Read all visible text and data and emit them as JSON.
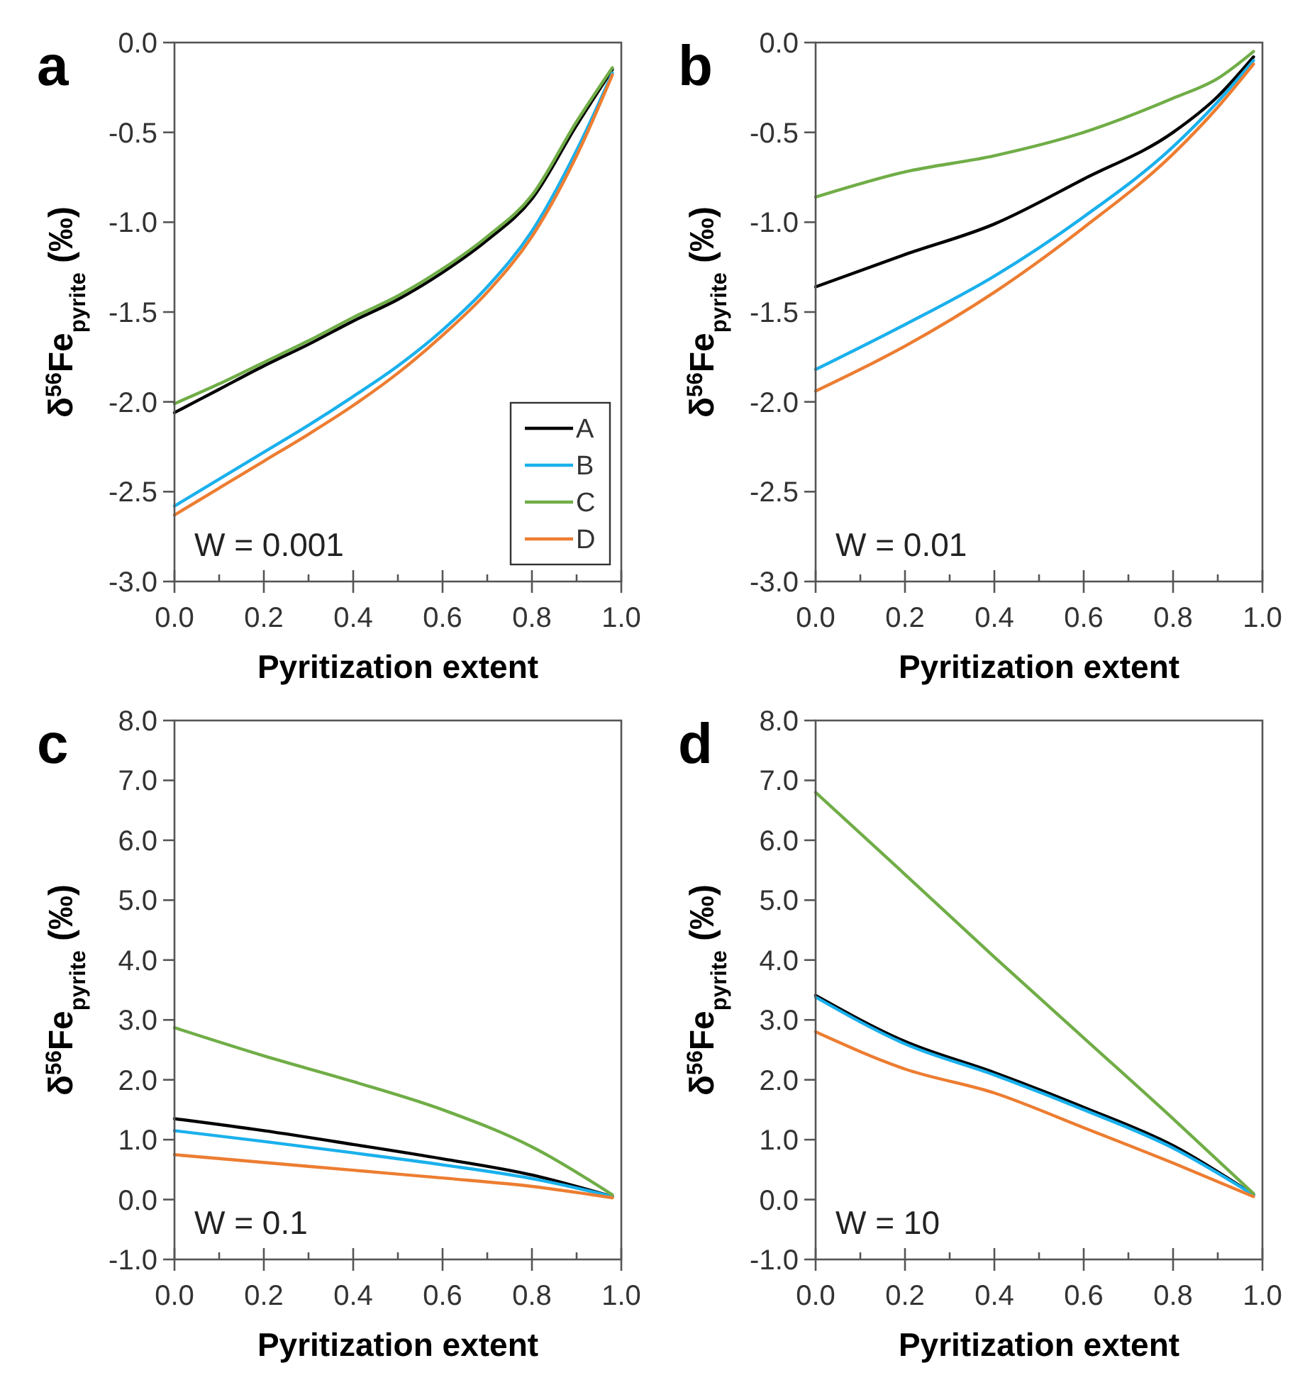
{
  "chart_data": [
    {
      "type": "line",
      "title": "a",
      "xlabel": "Pyritization extent",
      "ylabel": "δ$^{56}$Fe$_{pyrite}$ (‰)",
      "x": [
        0,
        0.1,
        0.2,
        0.3,
        0.4,
        0.5,
        0.6,
        0.7,
        0.8,
        0.9,
        0.98
      ],
      "xlim": [
        0,
        1
      ],
      "ylim": [
        -3,
        0
      ],
      "xticks": [
        {
          "value": 0,
          "label": "0.0"
        },
        {
          "value": 0.1,
          "label": null
        },
        {
          "value": 0.2,
          "label": "0.2"
        },
        {
          "value": 0.3,
          "label": null
        },
        {
          "value": 0.4,
          "label": "0.4"
        },
        {
          "value": 0.5,
          "label": null
        },
        {
          "value": 0.6,
          "label": "0.6"
        },
        {
          "value": 0.7,
          "label": null
        },
        {
          "value": 0.8,
          "label": "0.8"
        },
        {
          "value": 0.9,
          "label": null
        },
        {
          "value": 1,
          "label": "1.0"
        }
      ],
      "yticks": [
        {
          "value": -3,
          "label": "-3.0"
        },
        {
          "value": -2.5,
          "label": "-2.5"
        },
        {
          "value": -2,
          "label": "-2.0"
        },
        {
          "value": -1.5,
          "label": "-1.5"
        },
        {
          "value": -1,
          "label": "-1.0"
        },
        {
          "value": -0.5,
          "label": "-0.5"
        },
        {
          "value": 0,
          "label": "0.0"
        }
      ],
      "legend": "bottom right",
      "grid": false,
      "annotations": [
        "W = 0.001"
      ],
      "series": [
        {
          "name": "A",
          "color": "#000000",
          "values": [
            -2.06,
            -1.93,
            -1.8,
            -1.68,
            -1.55,
            -1.43,
            -1.28,
            -1.1,
            -0.87,
            -0.46,
            -0.15
          ]
        },
        {
          "name": "B",
          "color": "#1ab0ec",
          "values": [
            -2.58,
            -2.43,
            -2.28,
            -2.13,
            -1.97,
            -1.8,
            -1.6,
            -1.36,
            -1.05,
            -0.6,
            -0.17
          ]
        },
        {
          "name": "C",
          "color": "#70ad47",
          "values": [
            -2.01,
            -1.9,
            -1.78,
            -1.66,
            -1.53,
            -1.41,
            -1.26,
            -1.08,
            -0.85,
            -0.44,
            -0.14
          ]
        },
        {
          "name": "D",
          "color": "#ed7d31",
          "values": [
            -2.63,
            -2.48,
            -2.33,
            -2.18,
            -2.02,
            -1.84,
            -1.63,
            -1.39,
            -1.08,
            -0.63,
            -0.18
          ]
        }
      ]
    },
    {
      "type": "line",
      "title": "b",
      "xlabel": "Pyritization extent",
      "ylabel": "δ$^{56}$Fe$_{pyrite}$ (‰)",
      "x": [
        0,
        0.2,
        0.4,
        0.6,
        0.8,
        0.9,
        0.98
      ],
      "xlim": [
        0,
        1
      ],
      "ylim": [
        -3,
        0
      ],
      "xticks": [
        {
          "value": 0,
          "label": "0.0"
        },
        {
          "value": 0.1,
          "label": null
        },
        {
          "value": 0.2,
          "label": "0.2"
        },
        {
          "value": 0.3,
          "label": null
        },
        {
          "value": 0.4,
          "label": "0.4"
        },
        {
          "value": 0.5,
          "label": null
        },
        {
          "value": 0.6,
          "label": "0.6"
        },
        {
          "value": 0.7,
          "label": null
        },
        {
          "value": 0.8,
          "label": "0.8"
        },
        {
          "value": 0.9,
          "label": null
        },
        {
          "value": 1,
          "label": "1.0"
        }
      ],
      "yticks": [
        {
          "value": -3,
          "label": "-3.0"
        },
        {
          "value": -2.5,
          "label": "-2.5"
        },
        {
          "value": -2,
          "label": "-2.0"
        },
        {
          "value": -1.5,
          "label": "-1.5"
        },
        {
          "value": -1,
          "label": "-1.0"
        },
        {
          "value": -0.5,
          "label": "-0.5"
        },
        {
          "value": 0,
          "label": "0.0"
        }
      ],
      "grid": false,
      "annotations": [
        "W = 0.01"
      ],
      "series": [
        {
          "color": "#000000",
          "values": [
            -1.36,
            -1.18,
            -1.01,
            -0.76,
            -0.5,
            -0.3,
            -0.08
          ]
        },
        {
          "color": "#1ab0ec",
          "values": [
            -1.82,
            -1.57,
            -1.3,
            -0.97,
            -0.58,
            -0.33,
            -0.1
          ]
        },
        {
          "color": "#70ad47",
          "values": [
            -0.86,
            -0.72,
            -0.63,
            -0.5,
            -0.31,
            -0.2,
            -0.05
          ]
        },
        {
          "color": "#ed7d31",
          "values": [
            -1.94,
            -1.69,
            -1.39,
            -1.03,
            -0.62,
            -0.36,
            -0.12
          ]
        }
      ]
    },
    {
      "type": "line",
      "title": "c",
      "xlabel": "Pyritization extent",
      "ylabel": "δ$^{56}$Fe$_{pyrite}$ (‰)",
      "x": [
        0,
        0.2,
        0.4,
        0.6,
        0.8,
        0.98
      ],
      "xlim": [
        0,
        1
      ],
      "ylim": [
        -1,
        8
      ],
      "xticks": [
        {
          "value": 0,
          "label": "0.0"
        },
        {
          "value": 0.1,
          "label": null
        },
        {
          "value": 0.2,
          "label": "0.2"
        },
        {
          "value": 0.3,
          "label": null
        },
        {
          "value": 0.4,
          "label": "0.4"
        },
        {
          "value": 0.5,
          "label": null
        },
        {
          "value": 0.6,
          "label": "0.6"
        },
        {
          "value": 0.7,
          "label": null
        },
        {
          "value": 0.8,
          "label": "0.8"
        },
        {
          "value": 0.9,
          "label": null
        },
        {
          "value": 1,
          "label": "1.0"
        }
      ],
      "yticks": [
        {
          "value": -1,
          "label": "-1.0"
        },
        {
          "value": 0,
          "label": "0.0"
        },
        {
          "value": 1,
          "label": "1.0"
        },
        {
          "value": 2,
          "label": "2.0"
        },
        {
          "value": 3,
          "label": "3.0"
        },
        {
          "value": 4,
          "label": "4.0"
        },
        {
          "value": 5,
          "label": "5.0"
        },
        {
          "value": 6,
          "label": "6.0"
        },
        {
          "value": 7,
          "label": "7.0"
        },
        {
          "value": 8,
          "label": "8.0"
        }
      ],
      "grid": false,
      "annotations": [
        "W = 0.1"
      ],
      "series": [
        {
          "color": "#000000",
          "values": [
            1.35,
            1.15,
            0.92,
            0.68,
            0.41,
            0.05
          ]
        },
        {
          "color": "#1ab0ec",
          "values": [
            1.15,
            0.97,
            0.78,
            0.58,
            0.35,
            0.05
          ]
        },
        {
          "color": "#70ad47",
          "values": [
            2.87,
            2.4,
            1.97,
            1.5,
            0.88,
            0.08
          ]
        },
        {
          "color": "#ed7d31",
          "values": [
            0.75,
            0.62,
            0.49,
            0.36,
            0.22,
            0.03
          ]
        }
      ]
    },
    {
      "type": "line",
      "title": "d",
      "xlabel": "Pyritization extent",
      "ylabel": "δ$^{56}$Fe$_{pyrite}$ (‰)",
      "x": [
        0,
        0.2,
        0.4,
        0.6,
        0.8,
        0.98
      ],
      "xlim": [
        0,
        1
      ],
      "ylim": [
        -1,
        8
      ],
      "xticks": [
        {
          "value": 0,
          "label": "0.0"
        },
        {
          "value": 0.1,
          "label": null
        },
        {
          "value": 0.2,
          "label": "0.2"
        },
        {
          "value": 0.3,
          "label": null
        },
        {
          "value": 0.4,
          "label": "0.4"
        },
        {
          "value": 0.5,
          "label": null
        },
        {
          "value": 0.6,
          "label": "0.6"
        },
        {
          "value": 0.7,
          "label": null
        },
        {
          "value": 0.8,
          "label": "0.8"
        },
        {
          "value": 0.9,
          "label": null
        },
        {
          "value": 1,
          "label": "1.0"
        }
      ],
      "yticks": [
        {
          "value": -1,
          "label": "-1.0"
        },
        {
          "value": 0,
          "label": "0.0"
        },
        {
          "value": 1,
          "label": "1.0"
        },
        {
          "value": 2,
          "label": "2.0"
        },
        {
          "value": 3,
          "label": "3.0"
        },
        {
          "value": 4,
          "label": "4.0"
        },
        {
          "value": 5,
          "label": "5.0"
        },
        {
          "value": 6,
          "label": "6.0"
        },
        {
          "value": 7,
          "label": "7.0"
        },
        {
          "value": 8,
          "label": "8.0"
        }
      ],
      "grid": false,
      "annotations": [
        "W = 10"
      ],
      "series": [
        {
          "color": "#000000",
          "values": [
            3.41,
            2.64,
            2.12,
            1.54,
            0.9,
            0.08
          ]
        },
        {
          "color": "#1ab0ec",
          "values": [
            3.38,
            2.6,
            2.08,
            1.5,
            0.86,
            0.08
          ]
        },
        {
          "color": "#70ad47",
          "values": [
            6.8,
            5.43,
            4.05,
            2.7,
            1.35,
            0.1
          ]
        },
        {
          "color": "#ed7d31",
          "values": [
            2.8,
            2.18,
            1.78,
            1.2,
            0.61,
            0.05
          ]
        }
      ]
    }
  ]
}
